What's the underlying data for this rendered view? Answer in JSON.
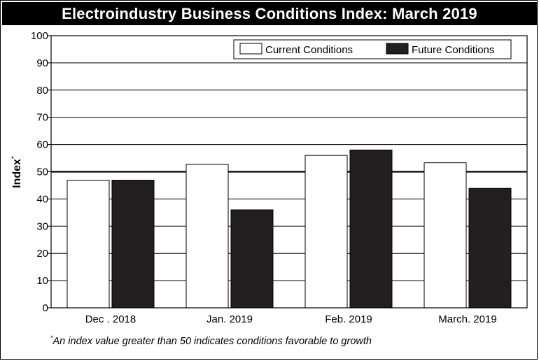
{
  "chart_data": {
    "type": "bar",
    "title": "Electroindustry Business Conditions Index: March 2019",
    "ylabel": "Index",
    "ylabel_marker": "*",
    "ylim": [
      0,
      100
    ],
    "yticks": [
      0,
      10,
      20,
      30,
      40,
      50,
      60,
      70,
      80,
      90,
      100
    ],
    "grid": true,
    "reference_line": 50,
    "legend_position": "top-right",
    "categories": [
      "Dec . 2018",
      "Jan. 2019",
      "Feb. 2019",
      "March. 2019"
    ],
    "series": [
      {
        "name": "Current Conditions",
        "values": [
          46.9,
          52.7,
          56.0,
          53.3
        ]
      },
      {
        "name": "Future Conditions",
        "values": [
          46.9,
          36.0,
          58.0,
          43.9
        ]
      }
    ],
    "colors": {
      "current": "#ffffff",
      "future": "#231f20",
      "outline": "#000000"
    }
  },
  "footnote": {
    "marker": "*",
    "text": "An index value greater than 50 indicates conditions favorable to growth"
  }
}
